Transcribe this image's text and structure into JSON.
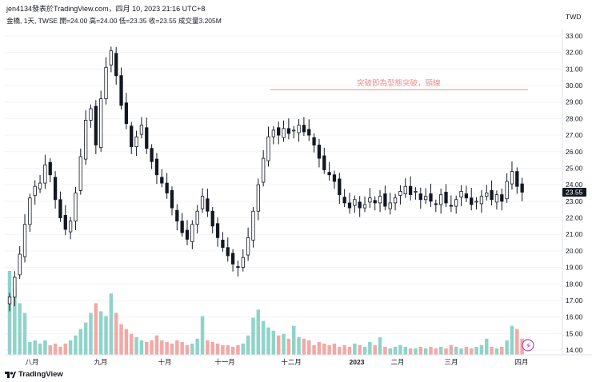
{
  "header": {
    "line1": "jen4134發表於TradingView.com，四月 10, 2023 21:16 UTC+8",
    "line2": "金橋, 1天, TWSE  開=24.00  高=24.00  低=23.35  收=23.55  成交量3.205M"
  },
  "footer": {
    "brand": "TradingView"
  },
  "colors": {
    "up": "#26a69a",
    "down": "#ef5350",
    "up_vol": "#8fd3c9",
    "down_vol": "#f2a9a6",
    "annotation": "#f08c8c",
    "text": "#131722",
    "candle_body": "#131722"
  },
  "chart_data": {
    "type": "candlestick",
    "title": "",
    "currency_label": "TWD",
    "price_axis": {
      "ticks": [
        "33.00",
        "32.00",
        "31.00",
        "30.00",
        "29.00",
        "28.00",
        "27.00",
        "26.00",
        "25.00",
        "24.00",
        "23.00",
        "22.00",
        "21.00",
        "20.00",
        "19.00",
        "18.00",
        "17.00",
        "16.00",
        "15.00",
        "14.00"
      ],
      "ylim": [
        14.0,
        33.5
      ]
    },
    "last_price": "23.55",
    "time_axis": {
      "labels": [
        "八月",
        "九月",
        "十月",
        "十一月",
        "十二月",
        "2023",
        "二月",
        "三月",
        "四月"
      ]
    },
    "annotation": {
      "text": "突破即為型態突破，頸線",
      "price": 29.75
    },
    "close_series": [
      17.2,
      18.4,
      19.8,
      21.6,
      23.2,
      23.9,
      24.1,
      25.2,
      24.6,
      23.1,
      22.0,
      21.3,
      21.8,
      23.5,
      25.7,
      27.9,
      28.6,
      26.4,
      29.2,
      31.1,
      32.1,
      30.6,
      28.8,
      27.7,
      26.3,
      26.9,
      27.6,
      26.2,
      25.4,
      24.6,
      24.1,
      23.5,
      22.6,
      21.8,
      21.1,
      20.7,
      21.6,
      22.4,
      23.3,
      22.4,
      21.5,
      20.8,
      20.2,
      19.7,
      19.2,
      19.0,
      19.6,
      20.8,
      22.4,
      24.0,
      25.6,
      26.9,
      27.3,
      27.0,
      27.4,
      27.1,
      27.3,
      27.6,
      27.2,
      27.0,
      26.4,
      25.6,
      24.9,
      24.6,
      24.2,
      23.4,
      22.9,
      22.6,
      23.1,
      22.6,
      22.8,
      23.2,
      22.9,
      23.3,
      22.7,
      22.9,
      23.2,
      23.6,
      23.9,
      23.4,
      23.6,
      23.1,
      23.3,
      23.0,
      22.8,
      23.4,
      22.9,
      22.7,
      23.1,
      23.6,
      23.2,
      22.8,
      23.0,
      23.3,
      23.5,
      23.1,
      23.4,
      23.0,
      24.2,
      24.8,
      23.9,
      23.55
    ],
    "volume_series": [
      5.2,
      4.1,
      3.2,
      2.6,
      0.8,
      0.9,
      0.7,
      0.9,
      0.6,
      0.7,
      0.5,
      0.7,
      0.9,
      1.2,
      1.6,
      2.0,
      2.6,
      3.2,
      2.7,
      2.4,
      3.8,
      2.6,
      1.9,
      1.6,
      1.3,
      1.1,
      0.9,
      0.8,
      0.9,
      1.2,
      0.9,
      0.8,
      0.7,
      0.9,
      0.8,
      0.6,
      0.7,
      1.0,
      2.4,
      0.9,
      0.8,
      0.7,
      0.6,
      0.6,
      0.5,
      0.6,
      0.7,
      1.2,
      2.3,
      2.8,
      2.1,
      1.7,
      1.5,
      1.2,
      1.3,
      1.0,
      1.8,
      1.1,
      1.0,
      0.9,
      0.6,
      0.8,
      0.7,
      0.6,
      0.7,
      0.5,
      0.6,
      0.5,
      0.7,
      0.6,
      0.5,
      0.8,
      0.6,
      1.1,
      0.5,
      0.4,
      0.5,
      0.6,
      0.5,
      0.4,
      0.4,
      0.5,
      0.4,
      0.5,
      0.4,
      0.5,
      0.4,
      0.6,
      0.5,
      0.4,
      0.5,
      0.4,
      0.5,
      0.6,
      1.0,
      0.5,
      0.4,
      0.5,
      0.9,
      1.8,
      1.6,
      1.0
    ]
  }
}
